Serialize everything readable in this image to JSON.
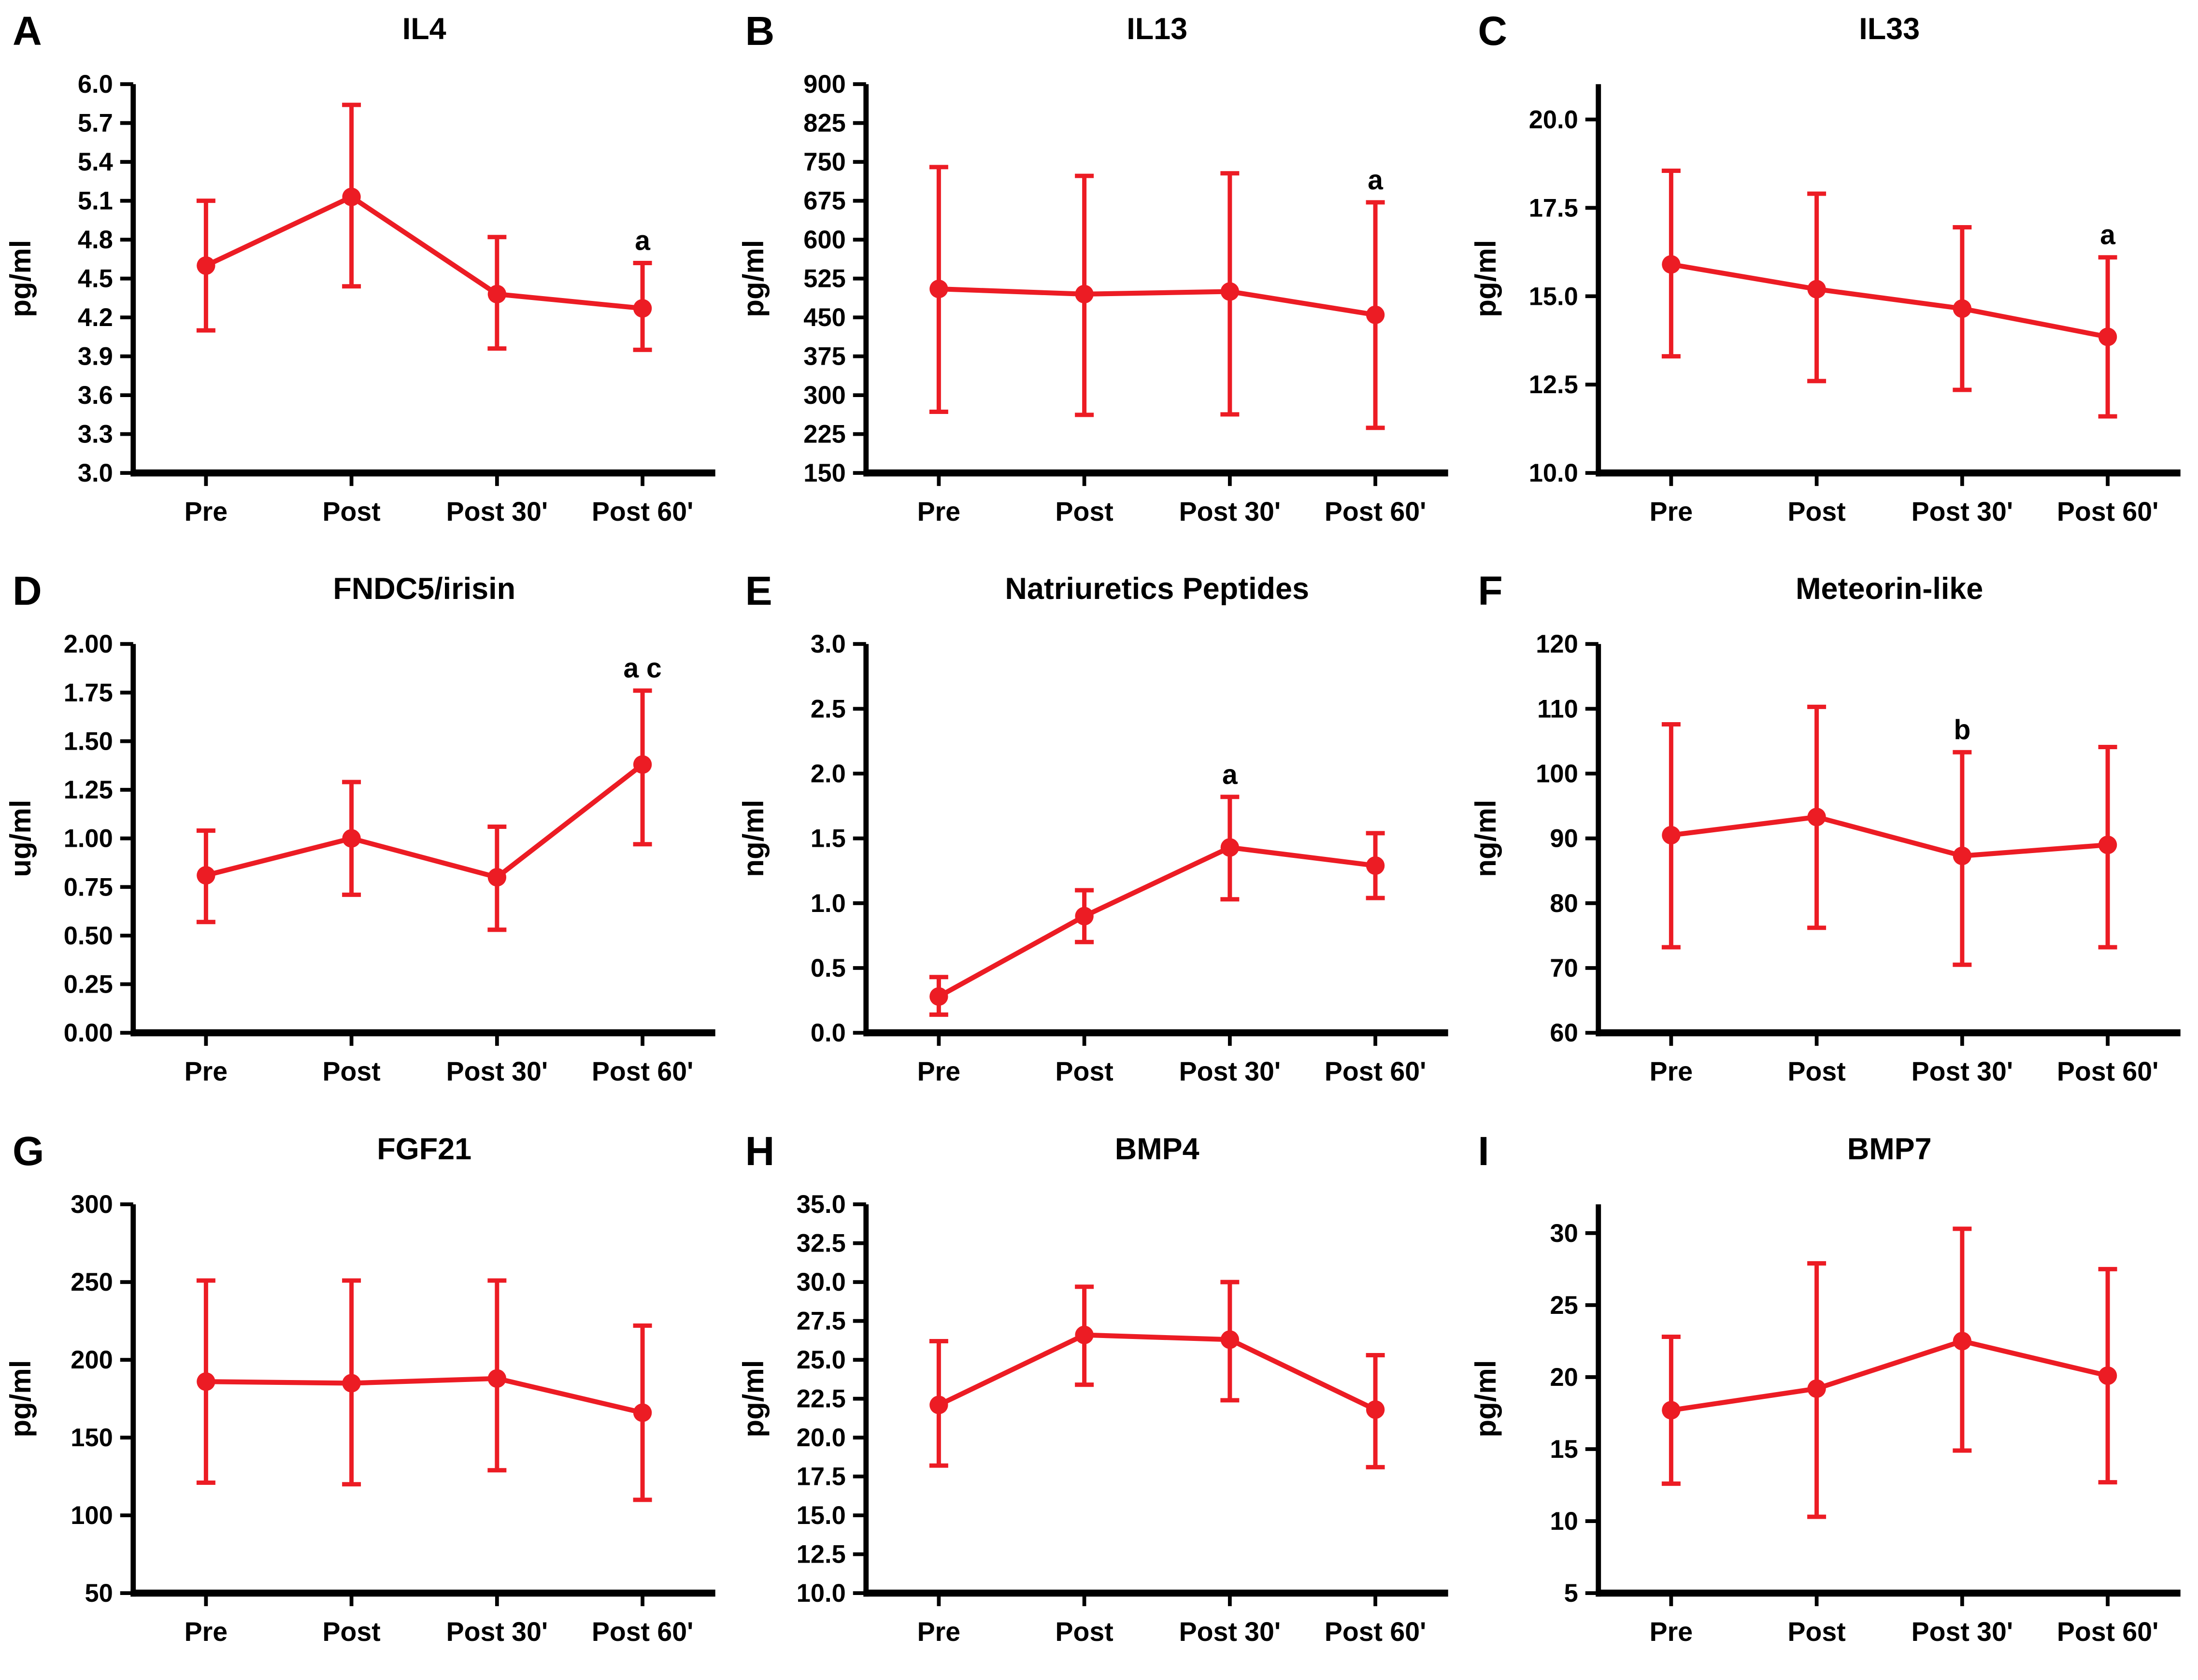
{
  "colors": {
    "series": "#EC1C24",
    "text": "#000000",
    "background": "#FFFFFF"
  },
  "chart_data": [
    {
      "type": "line",
      "error_bars": true,
      "grid": false,
      "legend": null,
      "panel_label": "A",
      "title": "IL4",
      "ylabel": "pg/ml",
      "categories": [
        "Pre",
        "Post",
        "Post 30'",
        "Post 60'"
      ],
      "ylim": [
        3.0,
        6.0
      ],
      "axis_top": 6.0,
      "yticks": [
        "6.0",
        "5.7",
        "5.4",
        "5.1",
        "4.8",
        "4.5",
        "4.2",
        "3.9",
        "3.6",
        "3.3",
        "3.0"
      ],
      "series": [
        {
          "name": "mean",
          "means": [
            4.6,
            5.13,
            4.38,
            4.27
          ],
          "err_low": [
            4.1,
            4.44,
            3.96,
            3.95
          ],
          "err_high": [
            5.1,
            5.84,
            4.82,
            4.62
          ]
        }
      ],
      "annotations": [
        {
          "index": 3,
          "label": "a"
        }
      ]
    },
    {
      "type": "line",
      "error_bars": true,
      "grid": false,
      "legend": null,
      "panel_label": "B",
      "title": "IL13",
      "ylabel": "pg/ml",
      "categories": [
        "Pre",
        "Post",
        "Post 30'",
        "Post 60'"
      ],
      "ylim": [
        150,
        900
      ],
      "axis_top": 900,
      "yticks": [
        "900",
        "825",
        "750",
        "675",
        "600",
        "525",
        "450",
        "375",
        "300",
        "225",
        "150"
      ],
      "series": [
        {
          "name": "mean",
          "means": [
            505,
            495,
            500,
            455
          ],
          "err_low": [
            268,
            262,
            263,
            237
          ],
          "err_high": [
            740,
            723,
            728,
            672
          ]
        }
      ],
      "annotations": [
        {
          "index": 3,
          "label": "a"
        }
      ]
    },
    {
      "type": "line",
      "error_bars": true,
      "grid": false,
      "legend": null,
      "panel_label": "C",
      "title": "IL33",
      "ylabel": "pg/ml",
      "categories": [
        "Pre",
        "Post",
        "Post 30'",
        "Post 60'"
      ],
      "ylim": [
        10.0,
        20.0
      ],
      "axis_top": 21.0,
      "yticks": [
        "20.0",
        "17.5",
        "15.0",
        "12.5",
        "10.0"
      ],
      "series": [
        {
          "name": "mean",
          "means": [
            15.9,
            15.2,
            14.65,
            13.85
          ],
          "err_low": [
            13.3,
            12.6,
            12.35,
            11.6
          ],
          "err_high": [
            18.55,
            17.9,
            16.95,
            16.1
          ]
        }
      ],
      "annotations": [
        {
          "index": 3,
          "label": "a"
        }
      ]
    },
    {
      "type": "line",
      "error_bars": true,
      "grid": false,
      "legend": null,
      "panel_label": "D",
      "title": "FNDC5/irisin",
      "ylabel": "ug/ml",
      "categories": [
        "Pre",
        "Post",
        "Post 30'",
        "Post 60'"
      ],
      "ylim": [
        0.0,
        2.0
      ],
      "axis_top": 2.0,
      "yticks": [
        "2.00",
        "1.75",
        "1.50",
        "1.25",
        "1.00",
        "0.75",
        "0.50",
        "0.25",
        "0.00"
      ],
      "series": [
        {
          "name": "mean",
          "means": [
            0.81,
            1.0,
            0.8,
            1.38
          ],
          "err_low": [
            0.57,
            0.71,
            0.53,
            0.97
          ],
          "err_high": [
            1.04,
            1.29,
            1.06,
            1.76
          ]
        }
      ],
      "annotations": [
        {
          "index": 3,
          "label": "a c"
        }
      ]
    },
    {
      "type": "line",
      "error_bars": true,
      "grid": false,
      "legend": null,
      "panel_label": "E",
      "title": "Natriuretics Peptides",
      "ylabel": "ng/ml",
      "categories": [
        "Pre",
        "Post",
        "Post 30'",
        "Post 60'"
      ],
      "ylim": [
        0.0,
        3.0
      ],
      "axis_top": 3.0,
      "yticks": [
        "3.0",
        "2.5",
        "2.0",
        "1.5",
        "1.0",
        "0.5",
        "0.0"
      ],
      "series": [
        {
          "name": "mean",
          "means": [
            0.28,
            0.9,
            1.43,
            1.29
          ],
          "err_low": [
            0.14,
            0.7,
            1.03,
            1.04
          ],
          "err_high": [
            0.43,
            1.1,
            1.82,
            1.54
          ]
        }
      ],
      "annotations": [
        {
          "index": 2,
          "label": "a"
        }
      ]
    },
    {
      "type": "line",
      "error_bars": true,
      "grid": false,
      "legend": null,
      "panel_label": "F",
      "title": "Meteorin-like",
      "ylabel": "ng/ml",
      "categories": [
        "Pre",
        "Post",
        "Post 30'",
        "Post 60'"
      ],
      "ylim": [
        60,
        120
      ],
      "axis_top": 120,
      "yticks": [
        "120",
        "110",
        "100",
        "90",
        "80",
        "70",
        "60"
      ],
      "series": [
        {
          "name": "mean",
          "means": [
            90.5,
            93.3,
            87.3,
            89.0
          ],
          "err_low": [
            73.2,
            76.2,
            70.5,
            73.2
          ],
          "err_high": [
            107.6,
            110.3,
            103.3,
            104.1
          ]
        }
      ],
      "annotations": [
        {
          "index": 2,
          "label": "b"
        }
      ]
    },
    {
      "type": "line",
      "error_bars": true,
      "grid": false,
      "legend": null,
      "panel_label": "G",
      "title": "FGF21",
      "ylabel": "pg/ml",
      "categories": [
        "Pre",
        "Post",
        "Post 30'",
        "Post 60'"
      ],
      "ylim": [
        50,
        300
      ],
      "axis_top": 300,
      "yticks": [
        "300",
        "250",
        "200",
        "150",
        "100",
        "50"
      ],
      "series": [
        {
          "name": "mean",
          "means": [
            186,
            185,
            188,
            166
          ],
          "err_low": [
            121,
            120,
            129,
            110
          ],
          "err_high": [
            251,
            251,
            251,
            222
          ]
        }
      ],
      "annotations": []
    },
    {
      "type": "line",
      "error_bars": true,
      "grid": false,
      "legend": null,
      "panel_label": "H",
      "title": "BMP4",
      "ylabel": "pg/ml",
      "categories": [
        "Pre",
        "Post",
        "Post 30'",
        "Post 60'"
      ],
      "ylim": [
        10.0,
        35.0
      ],
      "axis_top": 35.0,
      "yticks": [
        "35.0",
        "32.5",
        "30.0",
        "27.5",
        "25.0",
        "22.5",
        "20.0",
        "17.5",
        "15.0",
        "12.5",
        "10.0"
      ],
      "series": [
        {
          "name": "mean",
          "means": [
            22.1,
            26.6,
            26.3,
            21.8
          ],
          "err_low": [
            18.2,
            23.4,
            22.4,
            18.1
          ],
          "err_high": [
            26.2,
            29.7,
            30.0,
            25.3
          ]
        }
      ],
      "annotations": []
    },
    {
      "type": "line",
      "error_bars": true,
      "grid": false,
      "legend": null,
      "panel_label": "I",
      "title": "BMP7",
      "ylabel": "pg/ml",
      "categories": [
        "Pre",
        "Post",
        "Post 30'",
        "Post 60'"
      ],
      "ylim": [
        5,
        30
      ],
      "axis_top": 32,
      "yticks": [
        "30",
        "25",
        "20",
        "15",
        "10",
        "5"
      ],
      "series": [
        {
          "name": "mean",
          "means": [
            17.7,
            19.2,
            22.5,
            20.1
          ],
          "err_low": [
            12.6,
            10.3,
            14.9,
            12.7
          ],
          "err_high": [
            22.8,
            27.9,
            30.3,
            27.5
          ]
        }
      ],
      "annotations": []
    }
  ]
}
